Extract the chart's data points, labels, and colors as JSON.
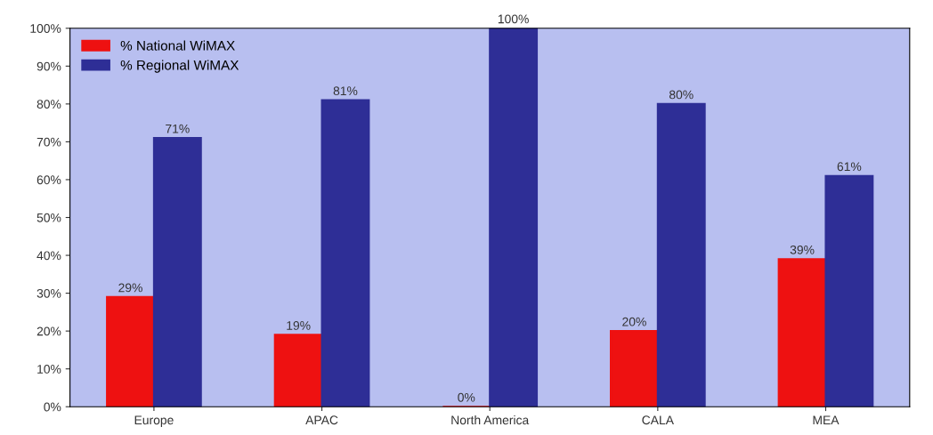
{
  "chart_data": {
    "type": "bar",
    "categories": [
      "Europe",
      "APAC",
      "North America",
      "CALA",
      "MEA"
    ],
    "series": [
      {
        "name": "% National WiMAX",
        "color": "#ee1111",
        "values": [
          29,
          19,
          0,
          20,
          39
        ],
        "value_labels": [
          "29%",
          "19%",
          "0%",
          "20%",
          "39%"
        ]
      },
      {
        "name": "% Regional WiMAX",
        "color": "#2e2e96",
        "values": [
          71,
          81,
          100,
          80,
          61
        ],
        "value_labels": [
          "71%",
          "81%",
          "100%",
          "80%",
          "61%"
        ]
      }
    ],
    "ylim": [
      0,
      100
    ],
    "yticks": [
      {
        "value": 0,
        "label": "0%"
      },
      {
        "value": 10,
        "label": "10%"
      },
      {
        "value": 20,
        "label": "20%"
      },
      {
        "value": 30,
        "label": "30%"
      },
      {
        "value": 40,
        "label": "40%"
      },
      {
        "value": 50,
        "label": "50%"
      },
      {
        "value": 60,
        "label": "60%"
      },
      {
        "value": 70,
        "label": "70%"
      },
      {
        "value": 80,
        "label": "80%"
      },
      {
        "value": 90,
        "label": "90%"
      },
      {
        "value": 100,
        "label": "100%"
      }
    ],
    "grid": false,
    "legend": "top left"
  }
}
